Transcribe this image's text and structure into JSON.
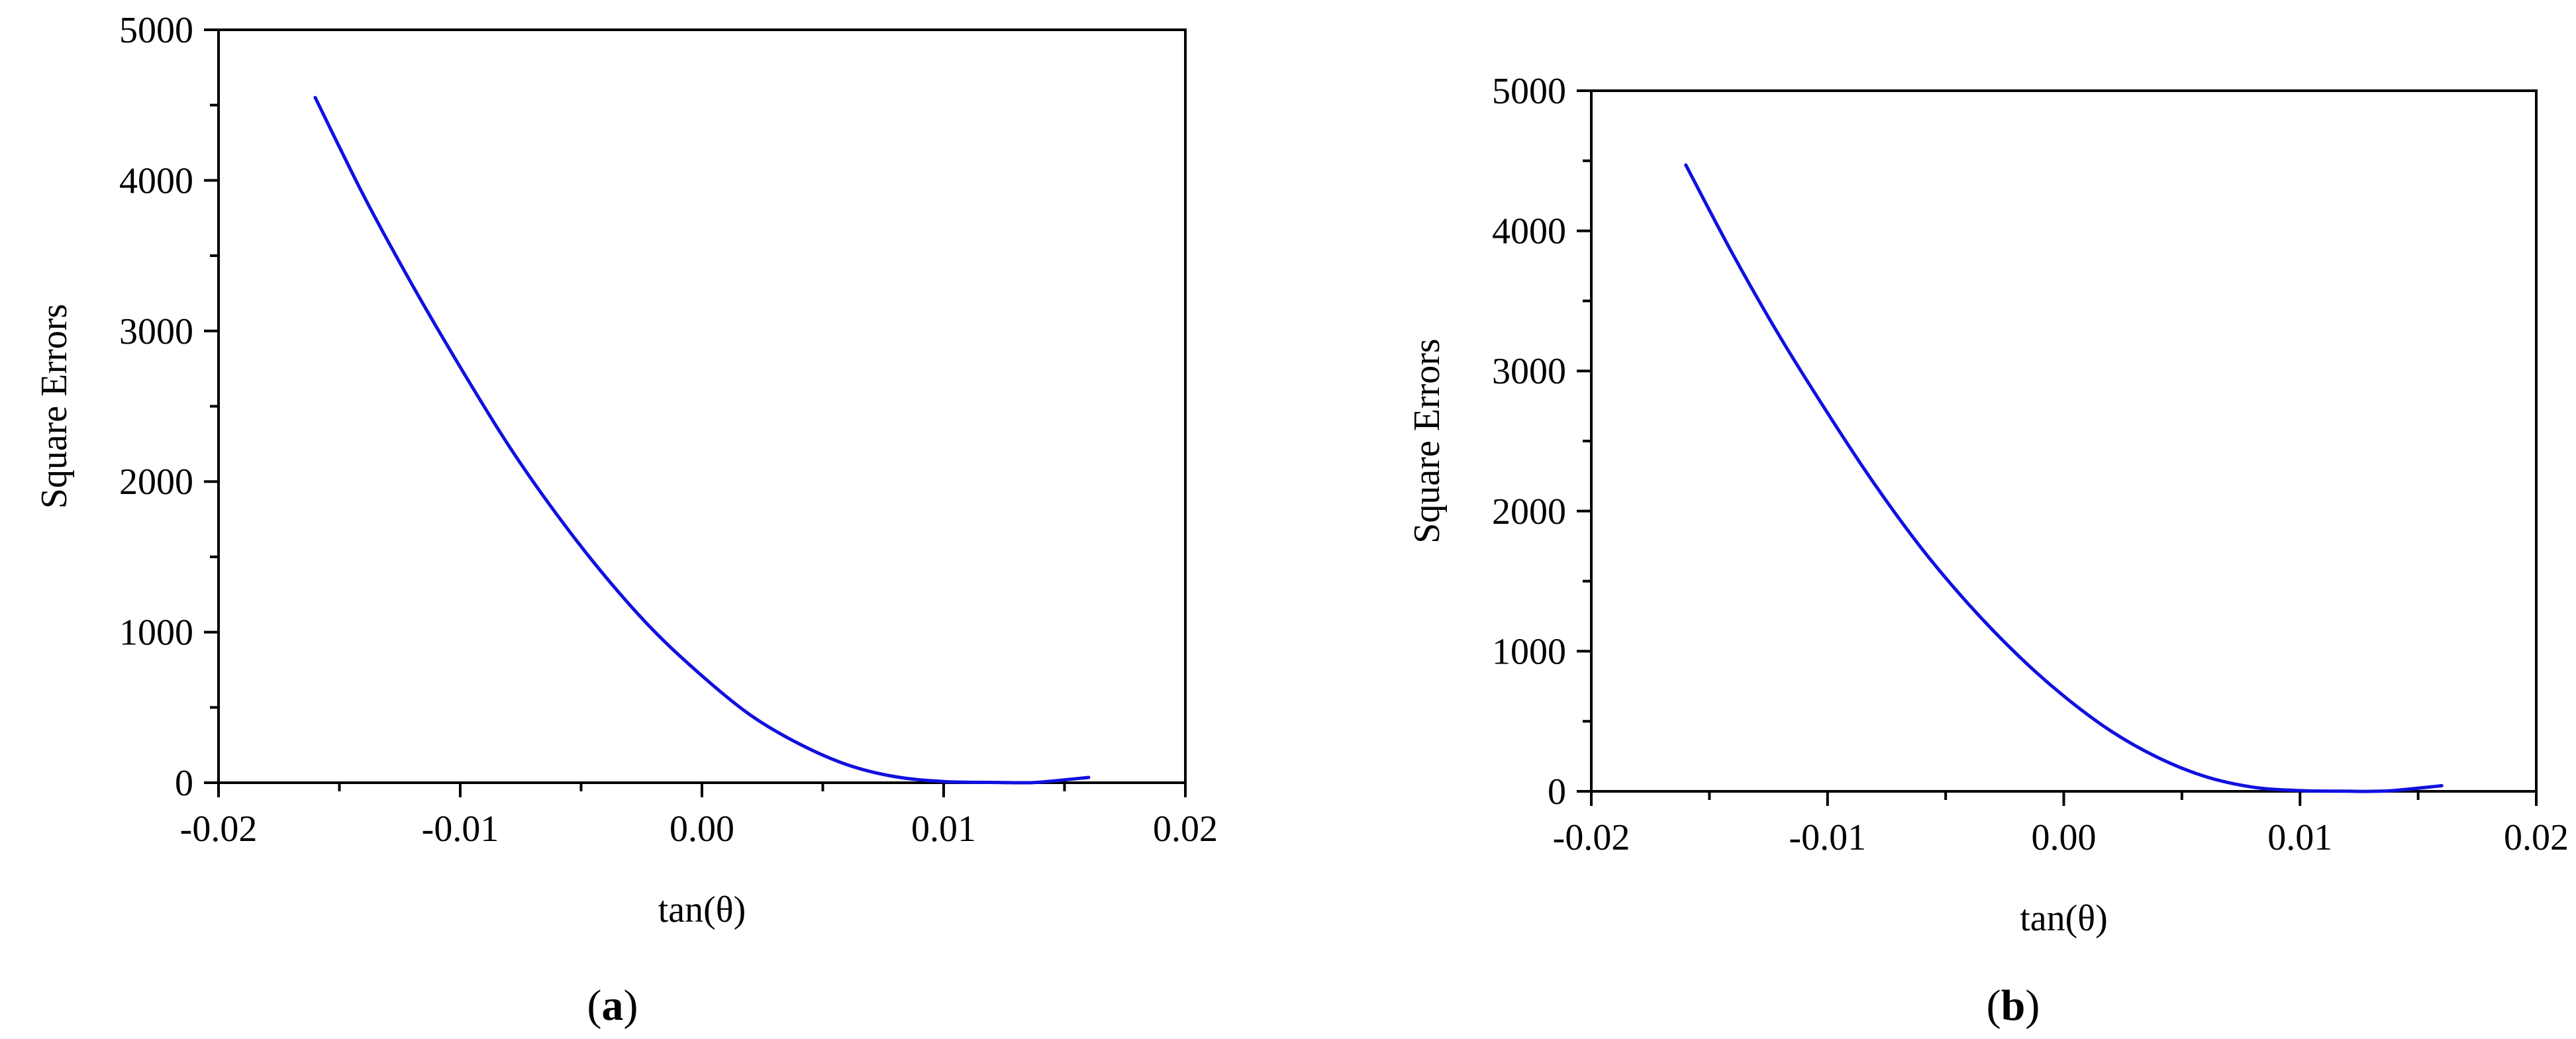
{
  "chart_data": [
    {
      "type": "line",
      "panel_label": "a",
      "xlabel": "tan(θ)",
      "ylabel": "Square Errors",
      "xlim": [
        -0.02,
        0.02
      ],
      "ylim": [
        0,
        5000
      ],
      "x_ticks": [
        -0.02,
        -0.01,
        0.0,
        0.01,
        0.02
      ],
      "x_tick_labels": [
        "-0.02",
        "-0.01",
        "0.00",
        "0.01",
        "0.02"
      ],
      "y_ticks": [
        0,
        1000,
        2000,
        3000,
        4000,
        5000
      ],
      "y_tick_labels": [
        "0",
        "1000",
        "2000",
        "3000",
        "4000",
        "5000"
      ],
      "grid": false,
      "series": [
        {
          "color": "#1010e0",
          "x": [
            -0.016,
            -0.014,
            -0.012,
            -0.01,
            -0.008,
            -0.006,
            -0.004,
            -0.002,
            0.0,
            0.002,
            0.004,
            0.006,
            0.008,
            0.01,
            0.012,
            0.0133,
            0.014,
            0.016
          ],
          "y": [
            4550,
            3900,
            3310,
            2760,
            2240,
            1780,
            1370,
            1010,
            710,
            450,
            260,
            120,
            40,
            8,
            2,
            0,
            4,
            35
          ]
        }
      ]
    },
    {
      "type": "line",
      "panel_label": "b",
      "xlabel": "tan(θ)",
      "ylabel": "Square Errors",
      "xlim": [
        -0.02,
        0.02
      ],
      "ylim": [
        0,
        5000
      ],
      "x_ticks": [
        -0.02,
        -0.01,
        0.0,
        0.01,
        0.02
      ],
      "x_tick_labels": [
        "-0.02",
        "-0.01",
        "0.00",
        "0.01",
        "0.02"
      ],
      "y_ticks": [
        0,
        1000,
        2000,
        3000,
        4000,
        5000
      ],
      "y_tick_labels": [
        "0",
        "1000",
        "2000",
        "3000",
        "4000",
        "5000"
      ],
      "grid": false,
      "series": [
        {
          "color": "#1010e0",
          "x": [
            -0.016,
            -0.014,
            -0.012,
            -0.01,
            -0.008,
            -0.006,
            -0.004,
            -0.002,
            0.0,
            0.002,
            0.004,
            0.006,
            0.008,
            0.01,
            0.012,
            0.013,
            0.014,
            0.016
          ],
          "y": [
            4470,
            3830,
            3240,
            2700,
            2190,
            1730,
            1330,
            980,
            680,
            430,
            240,
            105,
            30,
            5,
            1,
            0,
            6,
            40
          ]
        }
      ]
    }
  ]
}
